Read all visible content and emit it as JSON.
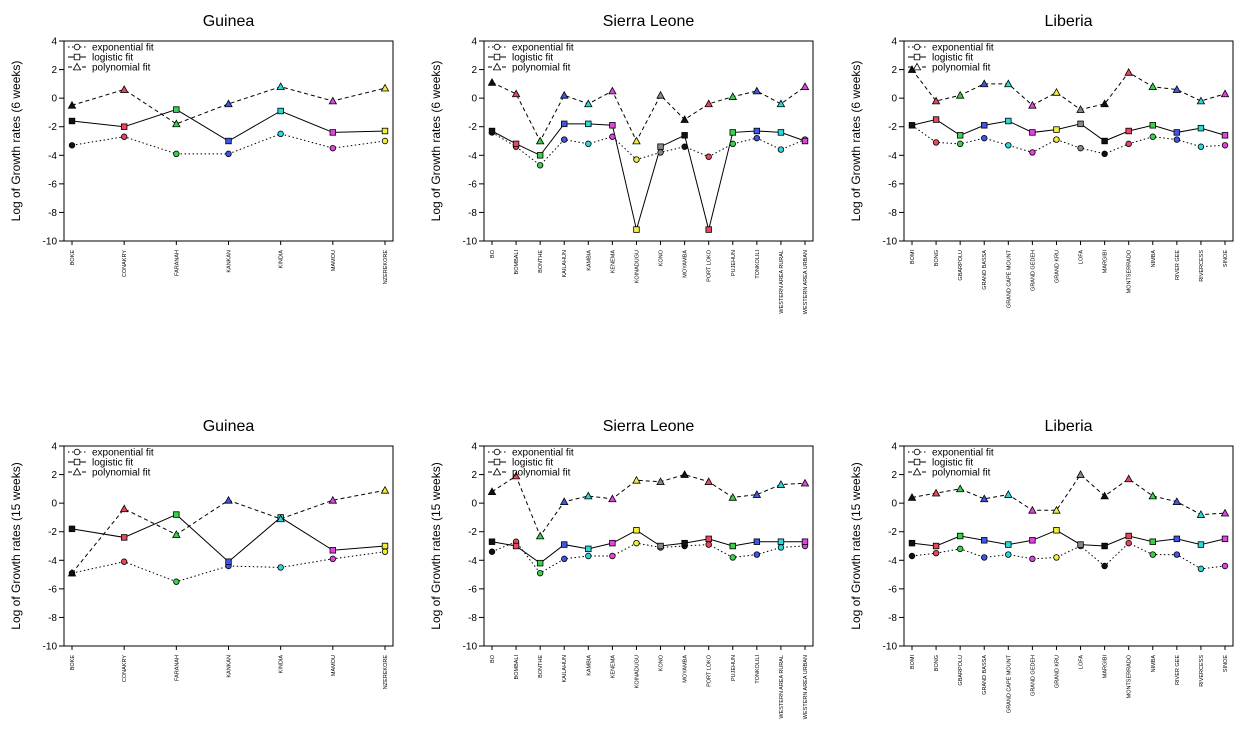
{
  "chart_data": [
    {
      "type": "line",
      "title": "Guinea",
      "ylabel": "Log of Growth rates (6 weeks)",
      "ylim": [
        -10,
        4
      ],
      "yticks": [
        4,
        2,
        0,
        -2,
        -4,
        -6,
        -8,
        -10
      ],
      "categories": [
        "BOKE",
        "CONAKRY",
        "FARANAH",
        "KANKAN",
        "KINDIA",
        "MAMOU",
        "NZEREKORE"
      ],
      "legend": {
        "position": "top-left",
        "entries": [
          "exponential fit",
          "logistic fit",
          "polynomial fit"
        ]
      },
      "series": [
        {
          "name": "exponential fit",
          "values": [
            -3.3,
            -2.7,
            -3.9,
            -3.9,
            -2.5,
            -3.5,
            -3.0
          ]
        },
        {
          "name": "logistic fit",
          "values": [
            -1.6,
            -2.0,
            -0.8,
            -3.0,
            -0.9,
            -2.4,
            -2.3
          ]
        },
        {
          "name": "polynomial fit",
          "values": [
            -0.5,
            0.6,
            -1.8,
            -0.4,
            0.8,
            -0.2,
            0.7
          ]
        }
      ]
    },
    {
      "type": "line",
      "title": "Sierra Leone",
      "ylabel": "Log of Growth rates (6 weeks)",
      "ylim": [
        -10,
        4
      ],
      "yticks": [
        4,
        2,
        0,
        -2,
        -4,
        -6,
        -8,
        -10
      ],
      "categories": [
        "BO",
        "BOMBALI",
        "BONTHE",
        "KAILAHUN",
        "KAMBIA",
        "KENEMA",
        "KOINADUGU",
        "KONO",
        "MOYAMBA",
        "PORT LOKO",
        "PUJEHUN",
        "TONKOLILI",
        "WESTERN AREA RURAL",
        "WESTERN AREA URBAN"
      ],
      "legend": {
        "position": "top-left",
        "entries": [
          "exponential fit",
          "logistic fit",
          "polynomial fit"
        ]
      },
      "series": [
        {
          "name": "exponential fit",
          "values": [
            -2.4,
            -3.4,
            -4.7,
            -2.9,
            -3.2,
            -2.7,
            -4.3,
            -3.8,
            -3.4,
            -4.1,
            -3.2,
            -2.8,
            -3.6,
            -2.9
          ]
        },
        {
          "name": "logistic fit",
          "values": [
            -2.3,
            -3.2,
            -4.0,
            -1.8,
            -1.8,
            -1.9,
            -9.2,
            -3.4,
            -2.6,
            -9.2,
            -2.4,
            -2.3,
            -2.4,
            -3.0
          ]
        },
        {
          "name": "polynomial fit",
          "values": [
            1.1,
            0.3,
            -3.0,
            0.2,
            -0.4,
            0.5,
            -3.0,
            0.2,
            -1.5,
            -0.4,
            0.1,
            0.5,
            -0.4,
            0.8
          ]
        }
      ]
    },
    {
      "type": "line",
      "title": "Liberia",
      "ylabel": "Log of Growth rates (6 weeks)",
      "ylim": [
        -10,
        4
      ],
      "yticks": [
        4,
        2,
        0,
        -2,
        -4,
        -6,
        -8,
        -10
      ],
      "categories": [
        "BOMI",
        "BONG",
        "GBARPOLU",
        "GRAND BASSA",
        "GRAND CAPE MOUNT",
        "GRAND GEDEH",
        "GRAND KRU",
        "LOFA",
        "MARGIBI",
        "MONTSERRADO",
        "NIMBA",
        "RIVER GEE",
        "RIVERCESS",
        "SINOE"
      ],
      "legend": {
        "position": "top-left",
        "entries": [
          "exponential fit",
          "logistic fit",
          "polynomial fit"
        ]
      },
      "series": [
        {
          "name": "exponential fit",
          "values": [
            -1.9,
            -3.1,
            -3.2,
            -2.8,
            -3.3,
            -3.8,
            -2.9,
            -3.5,
            -3.9,
            -3.2,
            -2.7,
            -2.9,
            -3.4,
            -3.3
          ]
        },
        {
          "name": "logistic fit",
          "values": [
            -1.9,
            -1.5,
            -2.6,
            -1.9,
            -1.6,
            -2.4,
            -2.2,
            -1.8,
            -3.0,
            -2.3,
            -1.9,
            -2.4,
            -2.1,
            -2.6
          ]
        },
        {
          "name": "polynomial fit",
          "values": [
            2.0,
            -0.2,
            0.2,
            1.0,
            1.0,
            -0.5,
            0.4,
            -0.8,
            -0.4,
            1.8,
            0.8,
            0.6,
            -0.2,
            0.3
          ]
        }
      ]
    },
    {
      "type": "line",
      "title": "Guinea",
      "ylabel": "Log of Growth rates (15 weeks)",
      "ylim": [
        -10,
        4
      ],
      "yticks": [
        4,
        2,
        0,
        -2,
        -4,
        -6,
        -8,
        -10
      ],
      "categories": [
        "BOKE",
        "CONAKRY",
        "FARANAH",
        "KANKAN",
        "KINDIA",
        "MAMOU",
        "NZEREKORE"
      ],
      "legend": {
        "position": "top-left",
        "entries": [
          "exponential fit",
          "logistic fit",
          "polynomial fit"
        ]
      },
      "series": [
        {
          "name": "exponential fit",
          "values": [
            -4.9,
            -4.1,
            -5.5,
            -4.4,
            -4.5,
            -3.9,
            -3.4
          ]
        },
        {
          "name": "logistic fit",
          "values": [
            -1.8,
            -2.4,
            -0.8,
            -4.1,
            -1.0,
            -3.3,
            -3.0
          ]
        },
        {
          "name": "polynomial fit",
          "values": [
            -4.9,
            -0.4,
            -2.2,
            0.2,
            -1.1,
            0.2,
            0.9
          ]
        }
      ]
    },
    {
      "type": "line",
      "title": "Sierra Leone",
      "ylabel": "Log of Growth rates (15 weeks)",
      "ylim": [
        -10,
        4
      ],
      "yticks": [
        4,
        2,
        0,
        -2,
        -4,
        -6,
        -8,
        -10
      ],
      "categories": [
        "BO",
        "BOMBALI",
        "BONTHE",
        "KAILAHUN",
        "KAMBIA",
        "KENEMA",
        "KOINADUGU",
        "KONO",
        "MOYAMBA",
        "PORT LOKO",
        "PUJEHUN",
        "TONKOLILI",
        "WESTERN AREA RURAL",
        "WESTERN AREA URBAN"
      ],
      "legend": {
        "position": "top-left",
        "entries": [
          "exponential fit",
          "logistic fit",
          "polynomial fit"
        ]
      },
      "series": [
        {
          "name": "exponential fit",
          "values": [
            -3.4,
            -2.7,
            -4.9,
            -3.9,
            -3.7,
            -3.7,
            -2.8,
            -3.1,
            -3.0,
            -2.9,
            -3.8,
            -3.6,
            -3.1,
            -3.0
          ]
        },
        {
          "name": "logistic fit",
          "values": [
            -2.7,
            -3.0,
            -4.2,
            -2.9,
            -3.2,
            -2.8,
            -1.9,
            -3.0,
            -2.8,
            -2.5,
            -3.0,
            -2.7,
            -2.7,
            -2.7
          ]
        },
        {
          "name": "polynomial fit",
          "values": [
            0.8,
            1.9,
            -2.3,
            0.1,
            0.5,
            0.3,
            1.6,
            1.5,
            2.0,
            1.5,
            0.4,
            0.6,
            1.3,
            1.4
          ]
        }
      ]
    },
    {
      "type": "line",
      "title": "Liberia",
      "ylabel": "Log of Growth rates (15 weeks)",
      "ylim": [
        -10,
        4
      ],
      "yticks": [
        4,
        2,
        0,
        -2,
        -4,
        -6,
        -8,
        -10
      ],
      "categories": [
        "BOMI",
        "BONG",
        "GBARPOLU",
        "GRAND BASSA",
        "GRAND CAPE MOUNT",
        "GRAND GEDEH",
        "GRAND KRU",
        "LOFA",
        "MARGIBI",
        "MONTSERRADO",
        "NIMBA",
        "RIVER GEE",
        "RIVERCESS",
        "SINOE"
      ],
      "legend": {
        "position": "top-left",
        "entries": [
          "exponential fit",
          "logistic fit",
          "polynomial fit"
        ]
      },
      "series": [
        {
          "name": "exponential fit",
          "values": [
            -3.7,
            -3.5,
            -3.2,
            -3.8,
            -3.6,
            -3.9,
            -3.8,
            -3.0,
            -4.4,
            -2.8,
            -3.6,
            -3.6,
            -4.6,
            -4.4
          ]
        },
        {
          "name": "logistic fit",
          "values": [
            -2.8,
            -3.0,
            -2.3,
            -2.6,
            -2.9,
            -2.6,
            -1.9,
            -2.9,
            -3.0,
            -2.3,
            -2.7,
            -2.5,
            -2.9,
            -2.5
          ]
        },
        {
          "name": "polynomial fit",
          "values": [
            0.4,
            0.7,
            1.0,
            0.3,
            0.6,
            -0.5,
            -0.5,
            2.0,
            0.5,
            1.7,
            0.5,
            0.1,
            -0.8,
            -0.7
          ]
        }
      ]
    }
  ],
  "style": {
    "line_color": "#000000",
    "point_colors": [
      "#111111",
      "#e8475f",
      "#39d24b",
      "#3f57e6",
      "#2bd8da",
      "#e244e0",
      "#f2ef3c",
      "#888888",
      "#111111",
      "#e8475f",
      "#39d24b",
      "#3f57e6",
      "#2bd8da",
      "#e244e0"
    ]
  }
}
